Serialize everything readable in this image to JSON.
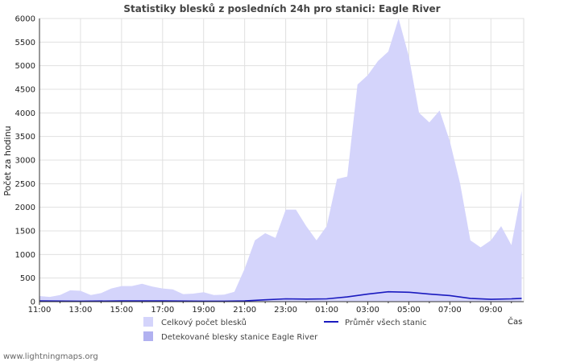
{
  "chart_data": {
    "type": "area",
    "title": "Statistiky blesků z posledních 24h pro stanici: Eagle River",
    "ylabel": "Počet za hodinu",
    "xlabel": "Čas",
    "ylim": [
      0,
      6000
    ],
    "yticks": [
      0,
      500,
      1000,
      1500,
      2000,
      2500,
      3000,
      3500,
      4000,
      4500,
      5000,
      5500,
      6000
    ],
    "xticks": [
      "11:00",
      "13:00",
      "15:00",
      "17:00",
      "19:00",
      "21:00",
      "23:00",
      "01:00",
      "03:00",
      "05:00",
      "07:00",
      "09:00"
    ],
    "x_start_hour": 11,
    "x_span_hours": 23.6,
    "series": [
      {
        "name": "Celkový počet blesků",
        "kind": "area",
        "color": "#d4d4fb",
        "x": [
          0,
          0.5,
          1,
          1.5,
          2,
          2.5,
          3,
          3.5,
          4,
          4.5,
          5,
          5.5,
          6,
          6.5,
          7,
          7.5,
          8,
          8.5,
          9,
          9.5,
          10,
          10.5,
          11,
          11.5,
          12,
          12.5,
          13,
          13.5,
          14,
          14.5,
          15,
          15.5,
          16,
          16.5,
          17,
          17.5,
          18,
          18.5,
          19,
          19.5,
          20,
          20.5,
          21,
          21.5,
          22,
          22.5,
          23,
          23.5
        ],
        "values": [
          120,
          100,
          140,
          240,
          230,
          140,
          180,
          280,
          330,
          330,
          380,
          320,
          280,
          260,
          160,
          170,
          200,
          140,
          150,
          210,
          700,
          1300,
          1450,
          1350,
          1950,
          1950,
          1600,
          1300,
          1600,
          2600,
          2650,
          4600,
          4800,
          5100,
          5300,
          6000,
          5200,
          4000,
          3800,
          4050,
          3400,
          2500,
          1300,
          1150,
          1300,
          1600,
          1200,
          2350
        ]
      },
      {
        "name": "Detekované blesky stanice Eagle River",
        "kind": "area",
        "color": "#b1b1f0",
        "x": [
          0,
          23.5
        ],
        "values": [
          0,
          0
        ]
      },
      {
        "name": "Průměr všech stanic",
        "kind": "line",
        "color": "#1a1abf",
        "x": [
          0,
          2,
          4,
          6,
          8,
          9,
          10,
          11,
          12,
          13,
          14,
          15,
          16,
          17,
          18,
          19,
          20,
          21,
          22,
          23,
          23.5
        ],
        "values": [
          15,
          10,
          15,
          15,
          10,
          10,
          15,
          40,
          60,
          55,
          60,
          100,
          160,
          210,
          200,
          160,
          130,
          70,
          50,
          60,
          70
        ]
      }
    ]
  },
  "legend": {
    "total": "Celkový počet blesků",
    "station": "Detekované blesky stanice Eagle River",
    "avg": "Průměr všech stanic"
  },
  "footer": "www.lightningmaps.org"
}
